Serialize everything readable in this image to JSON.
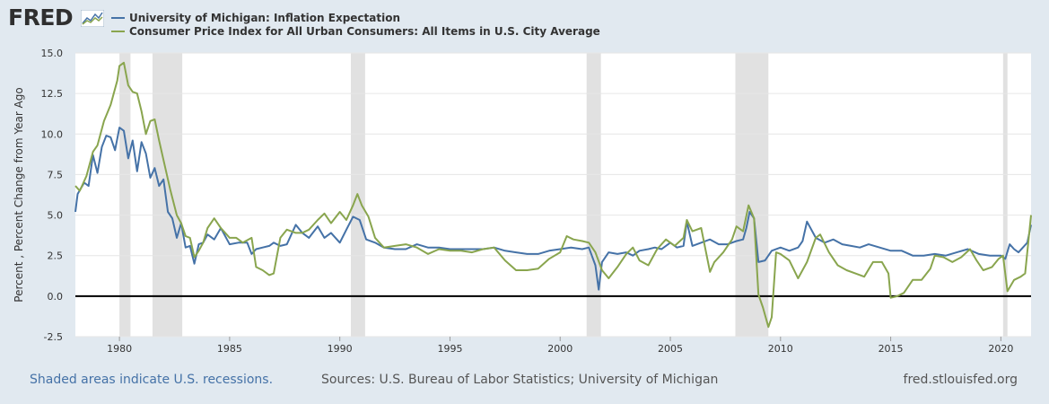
{
  "logo": {
    "text": "FRED"
  },
  "footer": {
    "recession_note": "Shaded areas indicate U.S. recessions.",
    "sources": "Sources: U.S. Bureau of Labor Statistics; University of Michigan",
    "site": "fred.stlouisfed.org"
  },
  "colors": {
    "background": "#e1e9f0",
    "plot": "#ffffff",
    "recession": "#e1e1e1",
    "zero_line": "#000000"
  },
  "chart_data": {
    "type": "line",
    "title": "",
    "xlabel": "",
    "ylabel": "Percent , Percent Change from Year Ago",
    "xlim": [
      1978.0,
      2021.37
    ],
    "ylim": [
      -2.5,
      15.0
    ],
    "yticks": [
      "-2.5",
      "0.0",
      "2.5",
      "5.0",
      "7.5",
      "10.0",
      "12.5",
      "15.0"
    ],
    "xticks": [
      "1980",
      "1985",
      "1990",
      "1995",
      "2000",
      "2005",
      "2010",
      "2015",
      "2020"
    ],
    "grid": true,
    "legend_position": "top",
    "recessions": [
      [
        1980.0,
        1980.5
      ],
      [
        1981.5,
        1982.85
      ],
      [
        1990.5,
        1991.15
      ],
      [
        2001.2,
        2001.85
      ],
      [
        2007.95,
        2009.45
      ],
      [
        2020.1,
        2020.3
      ]
    ],
    "series": [
      {
        "name": "University of Michigan: Inflation Expectation",
        "color": "#4572a7",
        "x": [
          1978.0,
          1978.1,
          1978.4,
          1978.6,
          1978.8,
          1979.0,
          1979.2,
          1979.4,
          1979.6,
          1979.8,
          1980.0,
          1980.2,
          1980.4,
          1980.6,
          1980.8,
          1981.0,
          1981.2,
          1981.4,
          1981.6,
          1981.8,
          1982.0,
          1982.2,
          1982.4,
          1982.6,
          1982.8,
          1983.0,
          1983.2,
          1983.4,
          1983.6,
          1983.8,
          1984.0,
          1984.3,
          1984.6,
          1985.0,
          1985.4,
          1985.8,
          1986.0,
          1986.2,
          1986.5,
          1986.8,
          1987.0,
          1987.3,
          1987.6,
          1988.0,
          1988.3,
          1988.6,
          1989.0,
          1989.3,
          1989.6,
          1990.0,
          1990.3,
          1990.6,
          1990.9,
          1991.2,
          1991.6,
          1992.0,
          1992.5,
          1993.0,
          1993.5,
          1994.0,
          1994.5,
          1995.0,
          1995.5,
          1996.0,
          1996.5,
          1997.0,
          1997.5,
          1998.0,
          1998.5,
          1999.0,
          1999.5,
          2000.0,
          2000.5,
          2001.0,
          2001.3,
          2001.6,
          2001.75,
          2001.9,
          2002.2,
          2002.6,
          2003.0,
          2003.3,
          2003.6,
          2004.0,
          2004.3,
          2004.6,
          2005.0,
          2005.3,
          2005.6,
          2005.75,
          2006.0,
          2006.4,
          2006.8,
          2007.2,
          2007.6,
          2008.0,
          2008.3,
          2008.45,
          2008.6,
          2008.8,
          2009.0,
          2009.3,
          2009.6,
          2010.0,
          2010.4,
          2010.8,
          2011.0,
          2011.2,
          2011.6,
          2012.0,
          2012.4,
          2012.8,
          2013.2,
          2013.6,
          2014.0,
          2014.5,
          2015.0,
          2015.5,
          2016.0,
          2016.5,
          2017.0,
          2017.5,
          2018.0,
          2018.5,
          2019.0,
          2019.5,
          2020.0,
          2020.2,
          2020.4,
          2020.6,
          2020.8,
          2021.0,
          2021.2,
          2021.37
        ],
        "y": [
          5.2,
          6.3,
          7.0,
          6.8,
          8.7,
          7.6,
          9.2,
          9.9,
          9.8,
          9.0,
          10.4,
          10.2,
          8.5,
          9.6,
          7.7,
          9.5,
          8.8,
          7.3,
          7.9,
          6.8,
          7.2,
          5.2,
          4.8,
          3.6,
          4.5,
          3.0,
          3.1,
          2.0,
          3.2,
          3.3,
          3.8,
          3.5,
          4.2,
          3.2,
          3.3,
          3.3,
          2.6,
          2.9,
          3.0,
          3.1,
          3.3,
          3.1,
          3.2,
          4.4,
          3.9,
          3.6,
          4.3,
          3.6,
          3.9,
          3.3,
          4.1,
          4.9,
          4.7,
          3.5,
          3.3,
          3.0,
          2.9,
          2.9,
          3.2,
          3.0,
          3.0,
          2.9,
          2.9,
          2.9,
          2.9,
          3.0,
          2.8,
          2.7,
          2.6,
          2.6,
          2.8,
          2.9,
          3.0,
          2.9,
          3.0,
          1.9,
          0.4,
          2.1,
          2.7,
          2.6,
          2.7,
          2.5,
          2.8,
          2.9,
          3.0,
          2.9,
          3.3,
          3.0,
          3.1,
          4.6,
          3.1,
          3.3,
          3.5,
          3.2,
          3.2,
          3.4,
          3.5,
          4.2,
          5.2,
          4.8,
          2.1,
          2.2,
          2.8,
          3.0,
          2.8,
          3.0,
          3.4,
          4.6,
          3.6,
          3.3,
          3.5,
          3.2,
          3.1,
          3.0,
          3.2,
          3.0,
          2.8,
          2.8,
          2.5,
          2.5,
          2.6,
          2.5,
          2.7,
          2.9,
          2.6,
          2.5,
          2.5,
          2.3,
          3.2,
          2.9,
          2.7,
          3.0,
          3.3,
          4.4
        ]
      },
      {
        "name": "Consumer Price Index for All Urban Consumers: All Items in U.S. City Average",
        "color": "#89a54e",
        "x": [
          1978.0,
          1978.2,
          1978.5,
          1978.8,
          1979.0,
          1979.3,
          1979.6,
          1979.9,
          1980.0,
          1980.2,
          1980.4,
          1980.6,
          1980.8,
          1981.0,
          1981.2,
          1981.4,
          1981.6,
          1981.8,
          1982.0,
          1982.3,
          1982.6,
          1982.8,
          1983.0,
          1983.2,
          1983.4,
          1983.6,
          1983.8,
          1984.0,
          1984.3,
          1984.6,
          1985.0,
          1985.3,
          1985.6,
          1986.0,
          1986.2,
          1986.5,
          1986.8,
          1987.0,
          1987.3,
          1987.6,
          1988.0,
          1988.3,
          1988.6,
          1989.0,
          1989.3,
          1989.6,
          1990.0,
          1990.3,
          1990.6,
          1990.8,
          1991.0,
          1991.3,
          1991.6,
          1992.0,
          1992.5,
          1993.0,
          1993.5,
          1994.0,
          1994.5,
          1995.0,
          1995.5,
          1996.0,
          1996.5,
          1997.0,
          1997.5,
          1998.0,
          1998.5,
          1999.0,
          1999.5,
          2000.0,
          2000.3,
          2000.6,
          2001.0,
          2001.3,
          2001.6,
          2001.9,
          2002.2,
          2002.6,
          2003.0,
          2003.3,
          2003.6,
          2004.0,
          2004.4,
          2004.8,
          2005.2,
          2005.6,
          2005.75,
          2006.0,
          2006.4,
          2006.8,
          2007.0,
          2007.4,
          2007.8,
          2008.0,
          2008.3,
          2008.55,
          2008.8,
          2009.0,
          2009.2,
          2009.45,
          2009.6,
          2009.8,
          2010.0,
          2010.4,
          2010.8,
          2011.2,
          2011.6,
          2011.8,
          2012.2,
          2012.6,
          2013.0,
          2013.4,
          2013.8,
          2014.2,
          2014.6,
          2014.9,
          2015.0,
          2015.3,
          2015.6,
          2016.0,
          2016.4,
          2016.8,
          2017.0,
          2017.4,
          2017.8,
          2018.2,
          2018.6,
          2018.9,
          2019.2,
          2019.6,
          2019.9,
          2020.1,
          2020.3,
          2020.6,
          2020.9,
          2021.1,
          2021.37
        ],
        "y": [
          6.8,
          6.5,
          7.4,
          8.9,
          9.3,
          10.8,
          11.8,
          13.3,
          14.2,
          14.4,
          13.0,
          12.6,
          12.5,
          11.4,
          10.0,
          10.8,
          10.9,
          9.6,
          8.4,
          6.6,
          5.0,
          4.5,
          3.7,
          3.6,
          2.4,
          2.8,
          3.3,
          4.2,
          4.8,
          4.2,
          3.6,
          3.6,
          3.3,
          3.6,
          1.8,
          1.6,
          1.3,
          1.4,
          3.6,
          4.1,
          3.9,
          3.9,
          4.1,
          4.7,
          5.1,
          4.5,
          5.2,
          4.7,
          5.6,
          6.3,
          5.6,
          4.9,
          3.6,
          3.0,
          3.1,
          3.2,
          3.0,
          2.6,
          2.9,
          2.8,
          2.8,
          2.7,
          2.9,
          3.0,
          2.2,
          1.6,
          1.6,
          1.7,
          2.3,
          2.7,
          3.7,
          3.5,
          3.4,
          3.3,
          2.7,
          1.6,
          1.1,
          1.8,
          2.6,
          3.0,
          2.2,
          1.9,
          2.9,
          3.5,
          3.1,
          3.6,
          4.7,
          4.0,
          4.2,
          1.5,
          2.1,
          2.7,
          3.5,
          4.3,
          4.0,
          5.6,
          4.8,
          0.1,
          -0.7,
          -1.9,
          -1.3,
          2.7,
          2.6,
          2.2,
          1.1,
          2.1,
          3.6,
          3.8,
          2.7,
          1.9,
          1.6,
          1.4,
          1.2,
          2.1,
          2.1,
          1.4,
          -0.1,
          0.0,
          0.2,
          1.0,
          1.0,
          1.7,
          2.5,
          2.4,
          2.1,
          2.4,
          2.9,
          2.2,
          1.6,
          1.8,
          2.3,
          2.5,
          0.3,
          1.0,
          1.2,
          1.4,
          5.0
        ]
      }
    ]
  }
}
